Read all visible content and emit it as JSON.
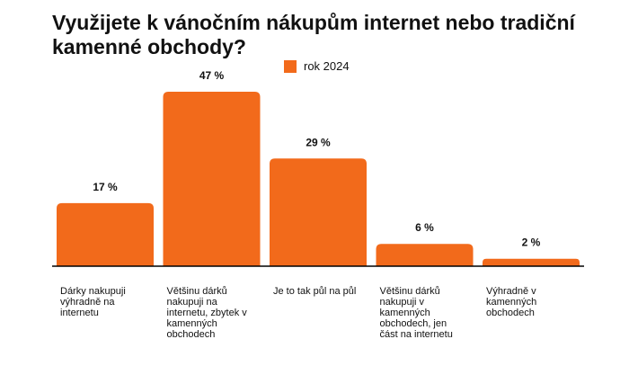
{
  "chart_data": {
    "type": "bar",
    "title": "Využijete k vánočním nákupům internet nebo tradiční kamenné obchody?",
    "legend": "rok 2024",
    "legend_position": "top-center",
    "color": "#f26a1b",
    "categories": [
      "Dárky nakupuji výhradně na internetu",
      "Většinu dárků nakupuji na internetu, zbytek v kamenných obchodech",
      "Je to tak půl na půl",
      "Většinu dárků nakupuji v kamenných obchodech, jen část na internetu",
      "Výhradně v kamenných obchodech"
    ],
    "values": [
      17,
      47,
      29,
      6,
      2
    ],
    "value_labels": [
      "17 %",
      "47 %",
      "29 %",
      "6 %",
      "2 %"
    ],
    "ylim": [
      0,
      47
    ],
    "grid": false
  }
}
